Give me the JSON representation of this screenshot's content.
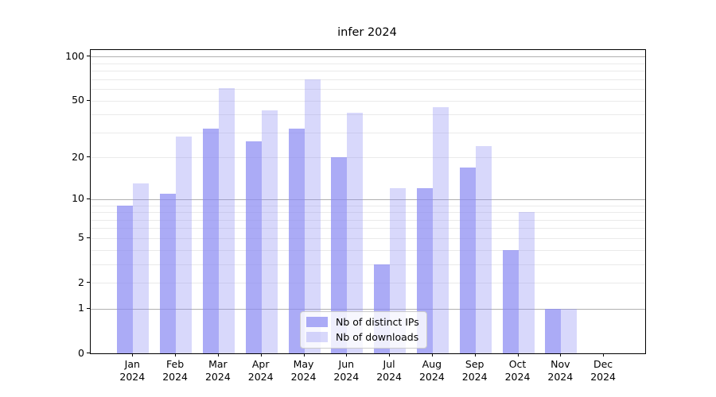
{
  "title": "infer 2024",
  "chart_data": {
    "type": "bar",
    "title": "infer 2024",
    "categories": [
      "Jan 2024",
      "Feb 2024",
      "Mar 2024",
      "Apr 2024",
      "May 2024",
      "Jun 2024",
      "Jul 2024",
      "Aug 2024",
      "Sep 2024",
      "Oct 2024",
      "Nov 2024",
      "Dec 2024"
    ],
    "series": [
      {
        "name": "Nb of distinct IPs",
        "color": "rgba(138,138,242,0.72)",
        "values": [
          9,
          11,
          32,
          26,
          32,
          20,
          3,
          12,
          17,
          4,
          1,
          0
        ]
      },
      {
        "name": "Nb of downloads",
        "color": "rgba(138,138,242,0.33)",
        "values": [
          13,
          28,
          61,
          43,
          70,
          41,
          12,
          45,
          24,
          8,
          1,
          0
        ]
      }
    ],
    "xlabel": "",
    "ylabel": "",
    "yscale": "log1p",
    "ylim": [
      0,
      111
    ],
    "ytick_values": [
      0,
      1,
      2,
      5,
      10,
      20,
      50,
      100
    ],
    "major_gridline_values": [
      1,
      10,
      100
    ],
    "minor_gridline_values": [
      2,
      3,
      4,
      5,
      6,
      7,
      8,
      9,
      20,
      30,
      40,
      50,
      60,
      70,
      80,
      90
    ],
    "grid": true,
    "legend_position": "lower center"
  }
}
